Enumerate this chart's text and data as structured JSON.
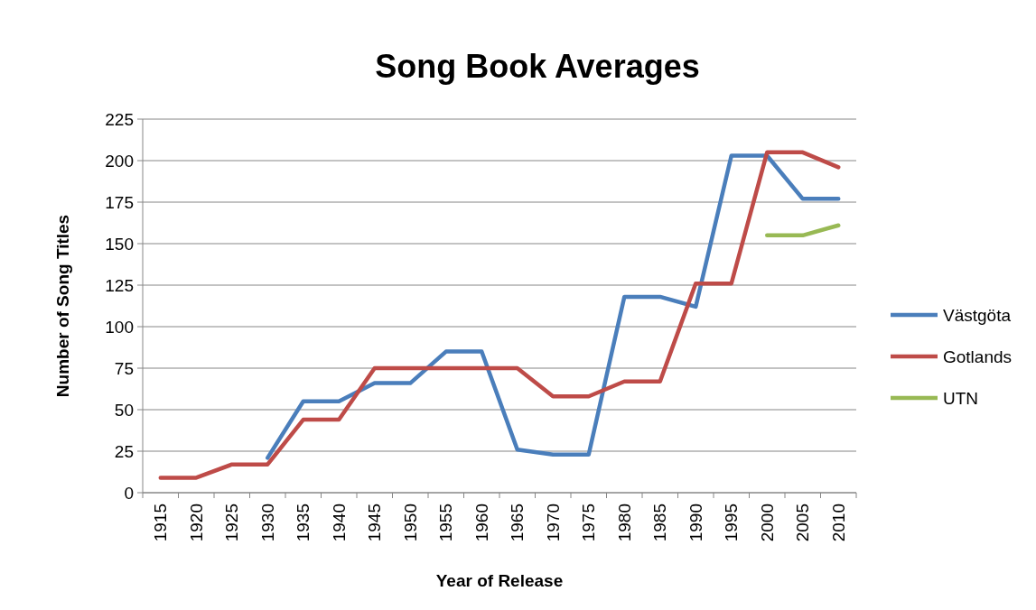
{
  "chart_data": {
    "type": "line",
    "title": "Song Book Averages",
    "xlabel": "Year of Release",
    "ylabel": "Number  of  Song Titles",
    "categories": [
      "1915",
      "1920",
      "1925",
      "1930",
      "1935",
      "1940",
      "1945",
      "1950",
      "1955",
      "1960",
      "1965",
      "1970",
      "1975",
      "1980",
      "1985",
      "1990",
      "1995",
      "2000",
      "2005",
      "2010"
    ],
    "series": [
      {
        "name": "Västgöta",
        "color": "#4a7ebb",
        "values": [
          null,
          null,
          null,
          21,
          55,
          55,
          66,
          66,
          85,
          85,
          26,
          23,
          23,
          118,
          118,
          112,
          203,
          203,
          177,
          177
        ]
      },
      {
        "name": "Gotlands",
        "color": "#be4b48",
        "values": [
          9,
          9,
          17,
          17,
          44,
          44,
          75,
          75,
          75,
          75,
          75,
          58,
          58,
          67,
          67,
          126,
          126,
          205,
          205,
          196
        ]
      },
      {
        "name": "UTN",
        "color": "#98b954",
        "values": [
          null,
          null,
          null,
          null,
          null,
          null,
          null,
          null,
          null,
          null,
          null,
          null,
          null,
          null,
          null,
          null,
          null,
          155,
          155,
          161
        ]
      }
    ],
    "ylim": [
      0,
      225
    ],
    "yticks": [
      0,
      25,
      50,
      75,
      100,
      125,
      150,
      175,
      200,
      225
    ],
    "grid": "y",
    "legend": "right",
    "marker": "none",
    "line_style": "solid"
  }
}
